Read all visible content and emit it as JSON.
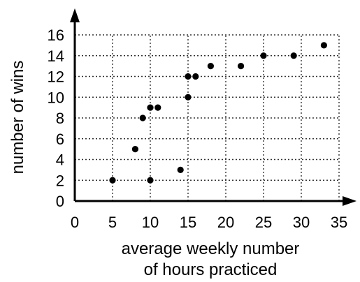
{
  "chart_data": {
    "type": "scatter",
    "xlabel_lines": [
      "average weekly number",
      "of hours practiced"
    ],
    "ylabel": "number of wins",
    "xlim": [
      0,
      35
    ],
    "ylim": [
      0,
      16
    ],
    "xticks": [
      0,
      5,
      10,
      15,
      20,
      25,
      30,
      35
    ],
    "yticks": [
      0,
      2,
      4,
      6,
      8,
      10,
      12,
      14,
      16
    ],
    "grid": true,
    "points": [
      {
        "x": 5,
        "y": 2
      },
      {
        "x": 8,
        "y": 5
      },
      {
        "x": 9,
        "y": 8
      },
      {
        "x": 10,
        "y": 9
      },
      {
        "x": 10,
        "y": 2
      },
      {
        "x": 11,
        "y": 9
      },
      {
        "x": 14,
        "y": 3
      },
      {
        "x": 15,
        "y": 12
      },
      {
        "x": 15,
        "y": 10
      },
      {
        "x": 16,
        "y": 12
      },
      {
        "x": 18,
        "y": 13
      },
      {
        "x": 22,
        "y": 13
      },
      {
        "x": 25,
        "y": 14
      },
      {
        "x": 29,
        "y": 14
      },
      {
        "x": 33,
        "y": 15
      }
    ]
  }
}
